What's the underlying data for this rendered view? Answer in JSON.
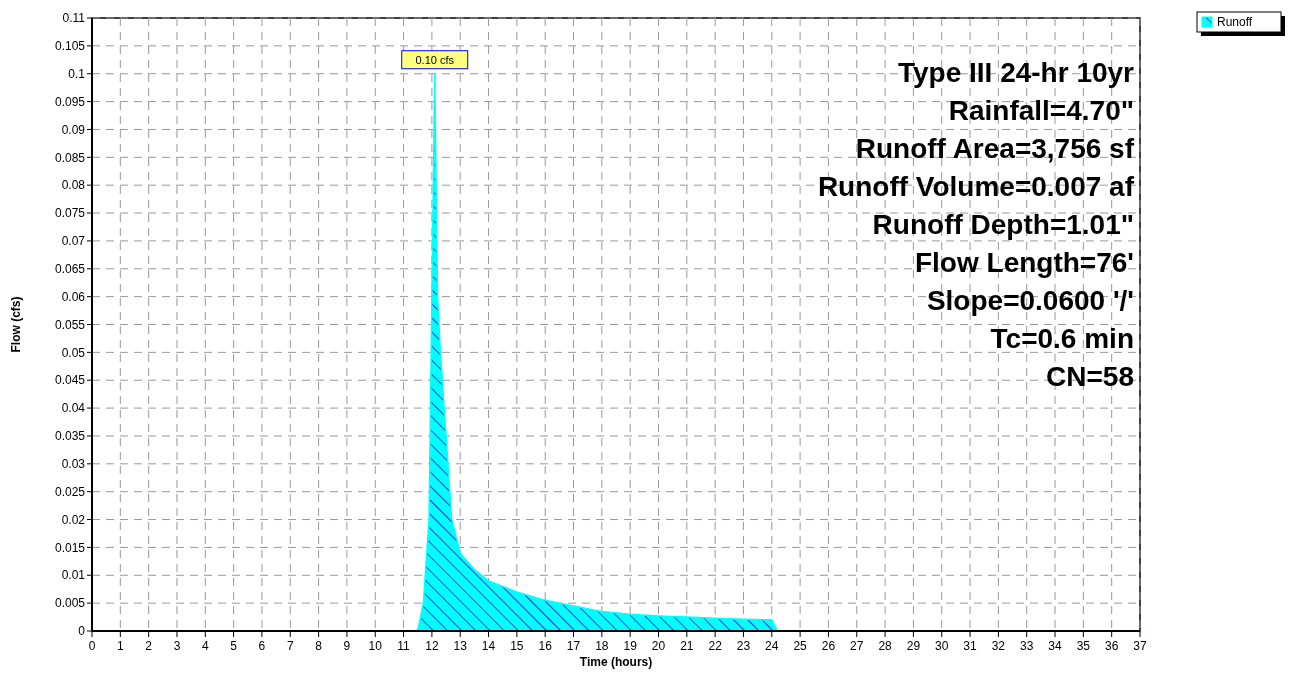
{
  "chart_data": {
    "type": "area",
    "xlabel": "Time  (hours)",
    "ylabel": "Flow  (cfs)",
    "x": [
      0,
      11.5,
      11.7,
      11.9,
      12.0,
      12.1,
      12.2,
      12.3,
      12.5,
      12.7,
      13,
      13.5,
      14,
      15,
      16,
      17,
      18,
      19,
      20,
      21,
      22,
      23,
      24,
      24.2,
      37
    ],
    "series": [
      {
        "name": "Runoff",
        "color": "#00ffff",
        "values": [
          0,
          0,
          0.005,
          0.02,
          0.06,
          0.1,
          0.06,
          0.05,
          0.035,
          0.02,
          0.014,
          0.011,
          0.009,
          0.007,
          0.0055,
          0.0045,
          0.0035,
          0.003,
          0.0027,
          0.0025,
          0.0023,
          0.0021,
          0.002,
          0,
          0
        ]
      }
    ],
    "xlim": [
      0,
      37
    ],
    "xticks": [
      0,
      1,
      2,
      3,
      4,
      5,
      6,
      7,
      8,
      9,
      10,
      11,
      12,
      13,
      14,
      15,
      16,
      17,
      18,
      19,
      20,
      21,
      22,
      23,
      24,
      25,
      26,
      27,
      28,
      29,
      30,
      31,
      32,
      33,
      34,
      35,
      36,
      37
    ],
    "ylim": [
      0,
      0.11
    ],
    "yticks": [
      0,
      0.005,
      0.01,
      0.015,
      0.02,
      0.025,
      0.03,
      0.035,
      0.04,
      0.045,
      0.05,
      0.055,
      0.06,
      0.065,
      0.07,
      0.075,
      0.08,
      0.085,
      0.09,
      0.095,
      0.1,
      0.105,
      0.11
    ],
    "grid": true,
    "legend": "top right",
    "annotations": [
      {
        "text": "0.10 cfs",
        "x": 12.1,
        "y": 0.1
      },
      "Type III 24-hr 10yr",
      "Rainfall=4.70\"",
      "Runoff Area=3,756 sf",
      "Runoff Volume=0.007 af",
      "Runoff Depth=1.01\"",
      "Flow Length=76'",
      "Slope=0.0600 '/'",
      "Tc=0.6 min",
      "CN=58"
    ]
  }
}
